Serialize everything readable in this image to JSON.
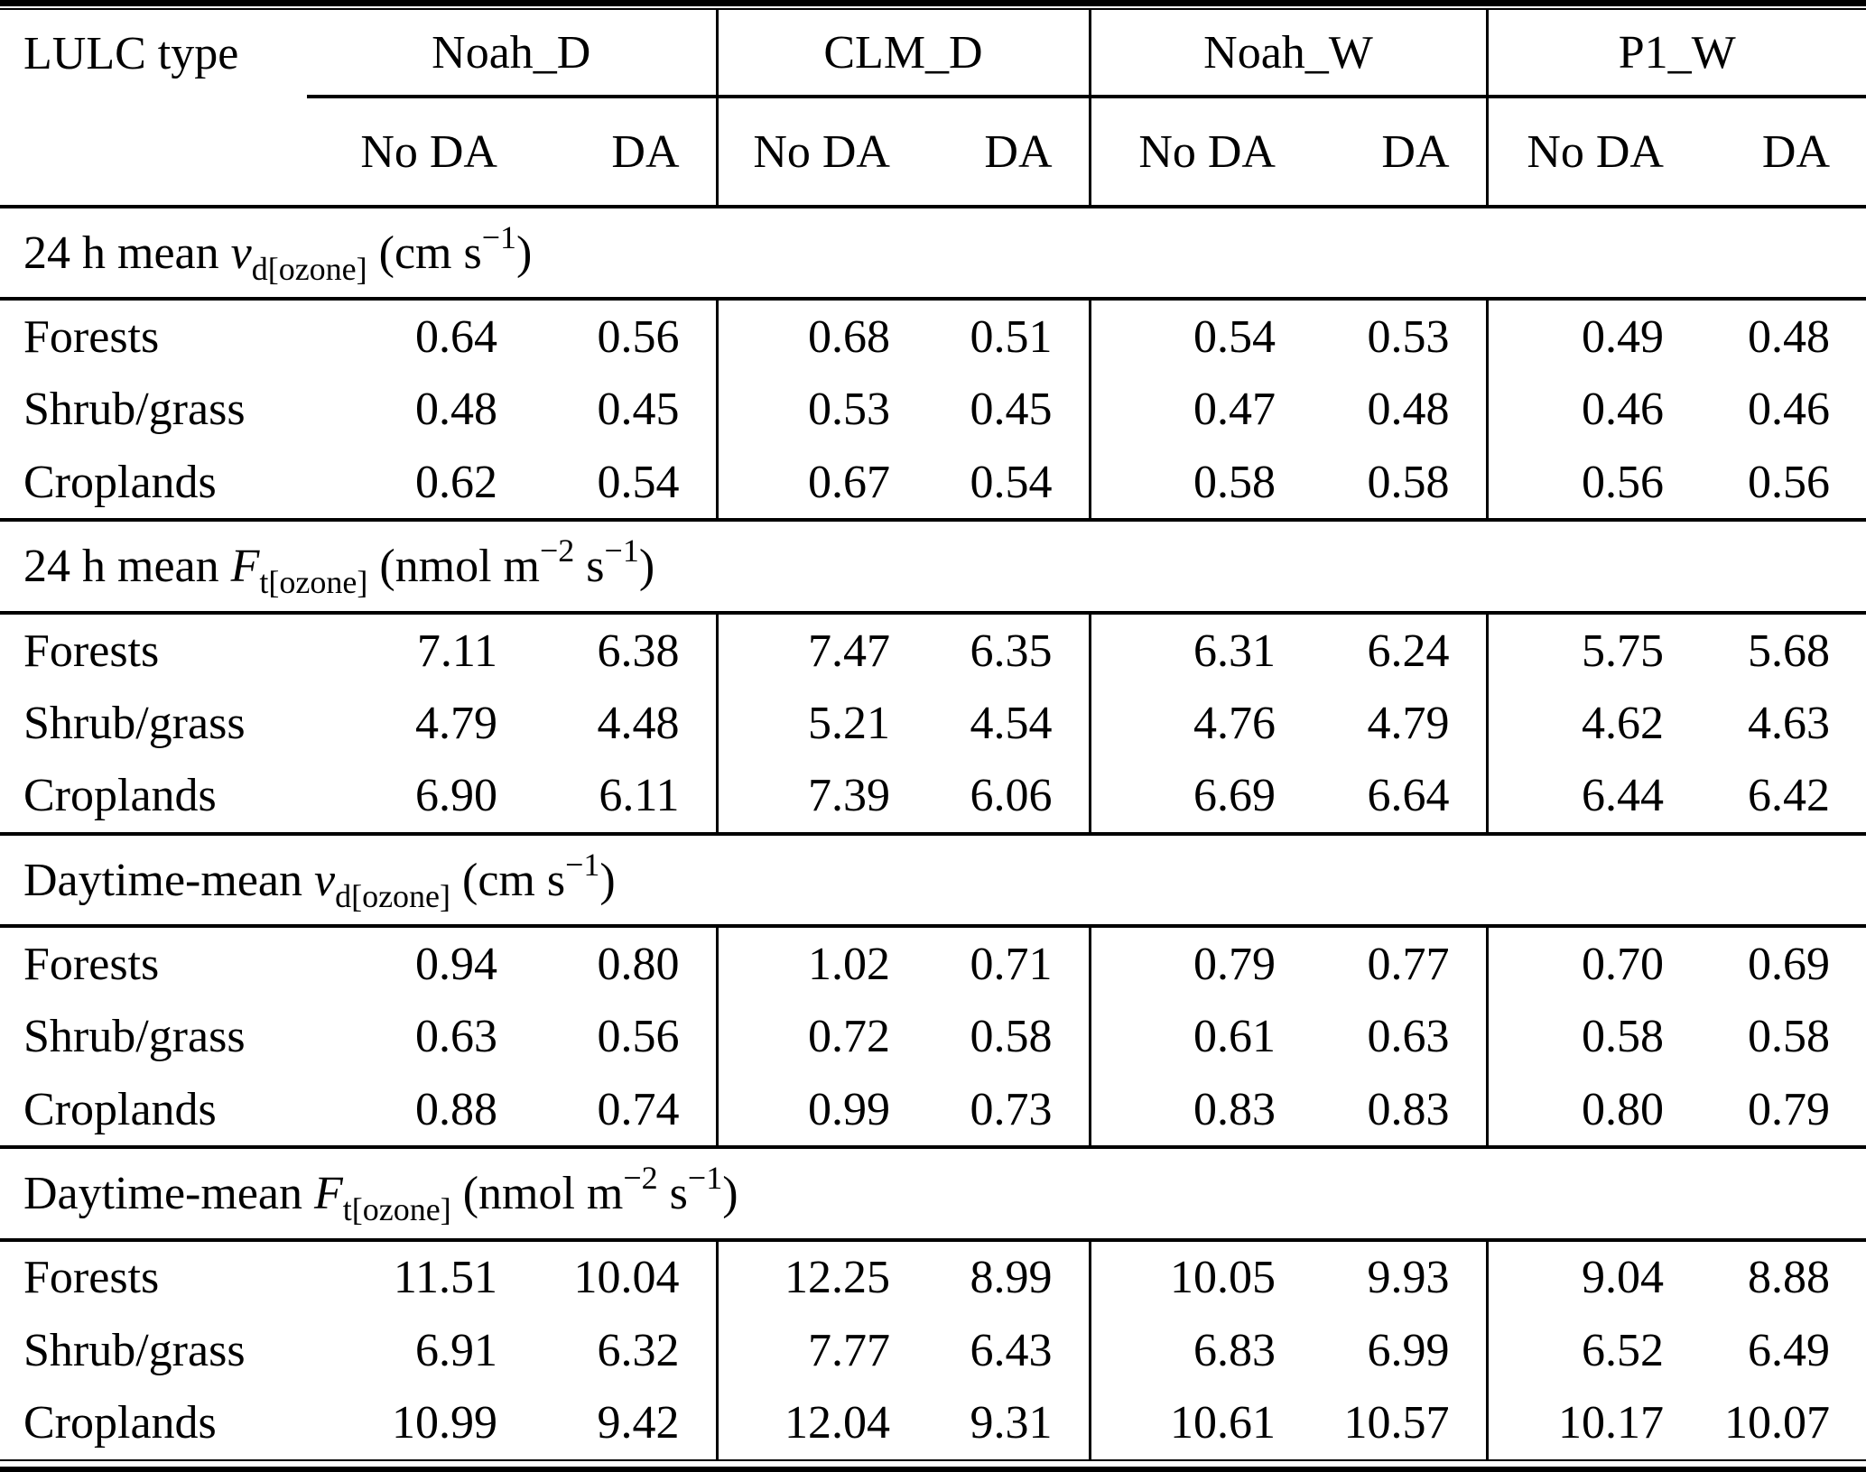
{
  "page": {
    "background": "#ffffff",
    "text_color": "#000000",
    "rule_color": "#000000"
  },
  "table": {
    "row_header": "LULC type",
    "groups": [
      "Noah_D",
      "CLM_D",
      "Noah_W",
      "P1_W"
    ],
    "sub_headers": [
      "No DA",
      "DA"
    ],
    "sections": [
      {
        "title_segments": [
          {
            "s": "n",
            "t": "24 h mean "
          },
          {
            "s": "i",
            "t": "v"
          },
          {
            "s": "sub",
            "t": "d[ozone]"
          },
          {
            "s": "n",
            "t": " (cm s"
          },
          {
            "s": "sup",
            "t": "−1"
          },
          {
            "s": "n",
            "t": ")"
          }
        ],
        "rows": [
          {
            "label": "Forests",
            "values": [
              "0.64",
              "0.56",
              "0.68",
              "0.51",
              "0.54",
              "0.53",
              "0.49",
              "0.48"
            ]
          },
          {
            "label": "Shrub/grass",
            "values": [
              "0.48",
              "0.45",
              "0.53",
              "0.45",
              "0.47",
              "0.48",
              "0.46",
              "0.46"
            ]
          },
          {
            "label": "Croplands",
            "values": [
              "0.62",
              "0.54",
              "0.67",
              "0.54",
              "0.58",
              "0.58",
              "0.56",
              "0.56"
            ]
          }
        ]
      },
      {
        "title_segments": [
          {
            "s": "n",
            "t": "24 h mean "
          },
          {
            "s": "i",
            "t": "F"
          },
          {
            "s": "sub",
            "t": "t[ozone]"
          },
          {
            "s": "n",
            "t": " (nmol m"
          },
          {
            "s": "sup",
            "t": "−2"
          },
          {
            "s": "n",
            "t": " s"
          },
          {
            "s": "sup",
            "t": "−1"
          },
          {
            "s": "n",
            "t": ")"
          }
        ],
        "rows": [
          {
            "label": "Forests",
            "values": [
              "7.11",
              "6.38",
              "7.47",
              "6.35",
              "6.31",
              "6.24",
              "5.75",
              "5.68"
            ]
          },
          {
            "label": "Shrub/grass",
            "values": [
              "4.79",
              "4.48",
              "5.21",
              "4.54",
              "4.76",
              "4.79",
              "4.62",
              "4.63"
            ]
          },
          {
            "label": "Croplands",
            "values": [
              "6.90",
              "6.11",
              "7.39",
              "6.06",
              "6.69",
              "6.64",
              "6.44",
              "6.42"
            ]
          }
        ]
      },
      {
        "title_segments": [
          {
            "s": "n",
            "t": "Daytime-mean "
          },
          {
            "s": "i",
            "t": "v"
          },
          {
            "s": "sub",
            "t": "d[ozone]"
          },
          {
            "s": "n",
            "t": " (cm s"
          },
          {
            "s": "sup",
            "t": "−1"
          },
          {
            "s": "n",
            "t": ")"
          }
        ],
        "rows": [
          {
            "label": "Forests",
            "values": [
              "0.94",
              "0.80",
              "1.02",
              "0.71",
              "0.79",
              "0.77",
              "0.70",
              "0.69"
            ]
          },
          {
            "label": "Shrub/grass",
            "values": [
              "0.63",
              "0.56",
              "0.72",
              "0.58",
              "0.61",
              "0.63",
              "0.58",
              "0.58"
            ]
          },
          {
            "label": "Croplands",
            "values": [
              "0.88",
              "0.74",
              "0.99",
              "0.73",
              "0.83",
              "0.83",
              "0.80",
              "0.79"
            ]
          }
        ]
      },
      {
        "title_segments": [
          {
            "s": "n",
            "t": "Daytime-mean "
          },
          {
            "s": "i",
            "t": "F"
          },
          {
            "s": "sub",
            "t": "t[ozone]"
          },
          {
            "s": "n",
            "t": " (nmol m"
          },
          {
            "s": "sup",
            "t": "−2"
          },
          {
            "s": "n",
            "t": " s"
          },
          {
            "s": "sup",
            "t": "−1"
          },
          {
            "s": "n",
            "t": ")"
          }
        ],
        "rows": [
          {
            "label": "Forests",
            "values": [
              "11.51",
              "10.04",
              "12.25",
              "8.99",
              "10.05",
              "9.93",
              "9.04",
              "8.88"
            ]
          },
          {
            "label": "Shrub/grass",
            "values": [
              "6.91",
              "6.32",
              "7.77",
              "6.43",
              "6.83",
              "6.99",
              "6.52",
              "6.49"
            ]
          },
          {
            "label": "Croplands",
            "values": [
              "10.99",
              "9.42",
              "12.04",
              "9.31",
              "10.61",
              "10.57",
              "10.17",
              "10.07"
            ]
          }
        ]
      }
    ]
  }
}
